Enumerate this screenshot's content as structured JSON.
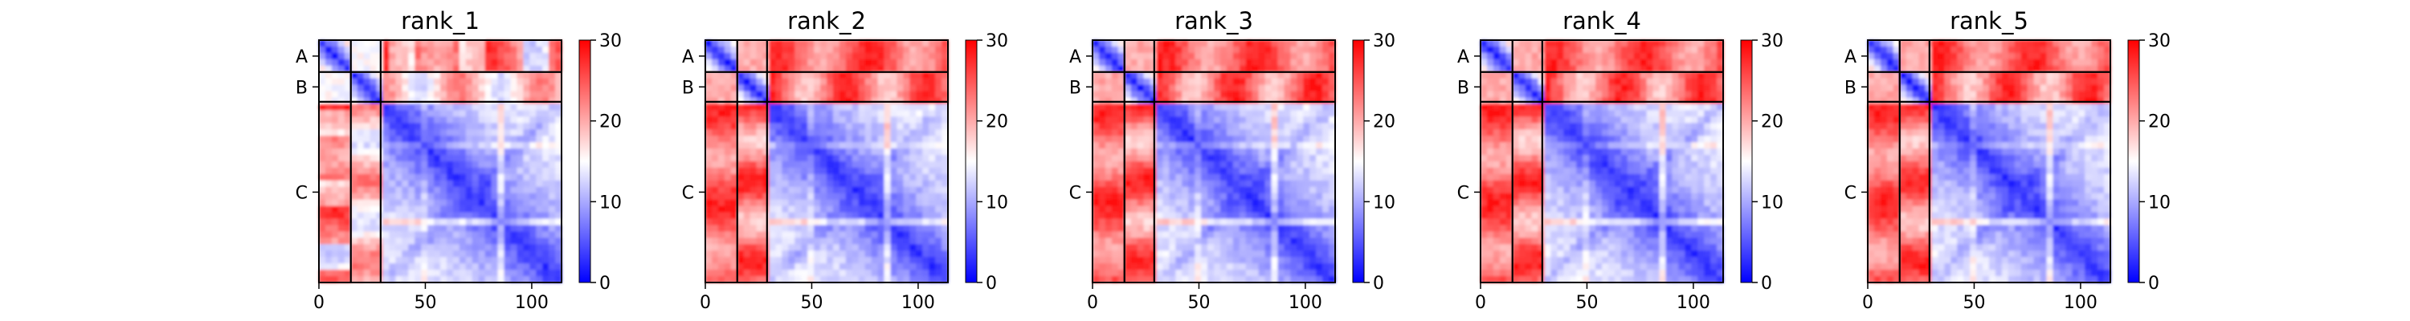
{
  "chart_data": [
    {
      "type": "heatmap",
      "title": "rank_1",
      "xticks": [
        "0",
        "50",
        "100"
      ],
      "chain_labels": [
        "A",
        "B",
        "C"
      ],
      "colorbar_ticks": [
        "0",
        "10",
        "20",
        "30"
      ],
      "xlim": [
        0,
        114
      ],
      "clim": [
        0,
        30
      ],
      "colormap": "bwr"
    },
    {
      "type": "heatmap",
      "title": "rank_2",
      "xticks": [
        "0",
        "50",
        "100"
      ],
      "chain_labels": [
        "A",
        "B",
        "C"
      ],
      "colorbar_ticks": [
        "0",
        "10",
        "20",
        "30"
      ],
      "xlim": [
        0,
        114
      ],
      "clim": [
        0,
        30
      ],
      "colormap": "bwr"
    },
    {
      "type": "heatmap",
      "title": "rank_3",
      "xticks": [
        "0",
        "50",
        "100"
      ],
      "chain_labels": [
        "A",
        "B",
        "C"
      ],
      "colorbar_ticks": [
        "0",
        "10",
        "20",
        "30"
      ],
      "xlim": [
        0,
        114
      ],
      "clim": [
        0,
        30
      ],
      "colormap": "bwr"
    },
    {
      "type": "heatmap",
      "title": "rank_4",
      "xticks": [
        "0",
        "50",
        "100"
      ],
      "chain_labels": [
        "A",
        "B",
        "C"
      ],
      "colorbar_ticks": [
        "0",
        "10",
        "20",
        "30"
      ],
      "xlim": [
        0,
        114
      ],
      "clim": [
        0,
        30
      ],
      "colormap": "bwr"
    },
    {
      "type": "heatmap",
      "title": "rank_5",
      "xticks": [
        "0",
        "50",
        "100"
      ],
      "chain_labels": [
        "A",
        "B",
        "C"
      ],
      "colorbar_ticks": [
        "0",
        "10",
        "20",
        "30"
      ],
      "xlim": [
        0,
        114
      ],
      "clim": [
        0,
        30
      ],
      "colormap": "bwr"
    }
  ],
  "chains": [
    {
      "name": "A",
      "start": 0,
      "end": 15
    },
    {
      "name": "B",
      "start": 15,
      "end": 29
    },
    {
      "name": "C",
      "start": 29,
      "end": 114
    }
  ],
  "colors": {
    "low": "#0000ff",
    "mid": "#ffffff",
    "high": "#ff0000",
    "border": "#000000"
  }
}
